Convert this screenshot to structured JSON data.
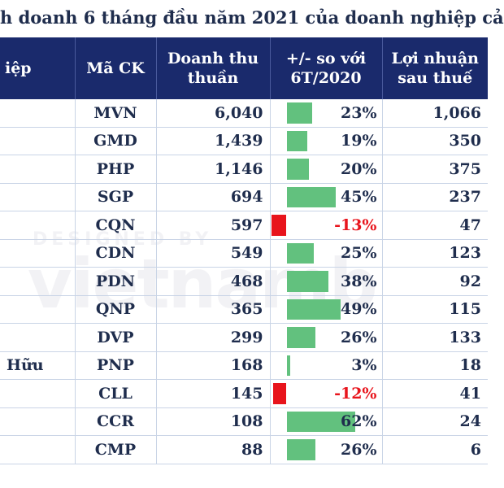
{
  "title": "h doanh 6 tháng đầu năm 2021 của doanh nghiệp cả",
  "watermark": {
    "small": "DESIGNED BY",
    "big": "vietnamb"
  },
  "colors": {
    "header_bg": "#1a2a6c",
    "positive_bar": "#62c17e",
    "negative_bar": "#e8141c",
    "negative_text": "#e8141c",
    "text": "#1f2d4d"
  },
  "chart_data": {
    "type": "table",
    "columns": [
      "iệp",
      "Mã CK",
      "Doanh thu thuần",
      "+/- so với 6T/2020",
      "Lợi nhuận sau thuế"
    ],
    "header_lines": {
      "name": "iệp",
      "code": "Mã CK",
      "revenue": [
        "Doanh thu",
        "thuần"
      ],
      "change": [
        "+/- so với",
        "6T/2020"
      ],
      "profit": [
        "Lợi nhuận",
        "sau thuế"
      ]
    },
    "rows": [
      {
        "name": "",
        "code": "MVN",
        "revenue": "6,040",
        "change_pct": 23,
        "change": "23%",
        "profit": "1,066"
      },
      {
        "name": "",
        "code": "GMD",
        "revenue": "1,439",
        "change_pct": 19,
        "change": "19%",
        "profit": "350"
      },
      {
        "name": "",
        "code": "PHP",
        "revenue": "1,146",
        "change_pct": 20,
        "change": "20%",
        "profit": "375"
      },
      {
        "name": "",
        "code": "SGP",
        "revenue": "694",
        "change_pct": 45,
        "change": "45%",
        "profit": "237"
      },
      {
        "name": "",
        "code": "CQN",
        "revenue": "597",
        "change_pct": -13,
        "change": "-13%",
        "profit": "47"
      },
      {
        "name": "",
        "code": "CDN",
        "revenue": "549",
        "change_pct": 25,
        "change": "25%",
        "profit": "123"
      },
      {
        "name": "",
        "code": "PDN",
        "revenue": "468",
        "change_pct": 38,
        "change": "38%",
        "profit": "92"
      },
      {
        "name": "",
        "code": "QNP",
        "revenue": "365",
        "change_pct": 49,
        "change": "49%",
        "profit": "115"
      },
      {
        "name": "",
        "code": "DVP",
        "revenue": "299",
        "change_pct": 26,
        "change": "26%",
        "profit": "133"
      },
      {
        "name": "Hữu",
        "code": "PNP",
        "revenue": "168",
        "change_pct": 3,
        "change": "3%",
        "profit": "18"
      },
      {
        "name": "",
        "code": "CLL",
        "revenue": "145",
        "change_pct": -12,
        "change": "-12%",
        "profit": "41"
      },
      {
        "name": "",
        "code": "CCR",
        "revenue": "108",
        "change_pct": 62,
        "change": "62%",
        "profit": "24"
      },
      {
        "name": "",
        "code": "CMP",
        "revenue": "88",
        "change_pct": 26,
        "change": "26%",
        "profit": "6"
      }
    ]
  }
}
